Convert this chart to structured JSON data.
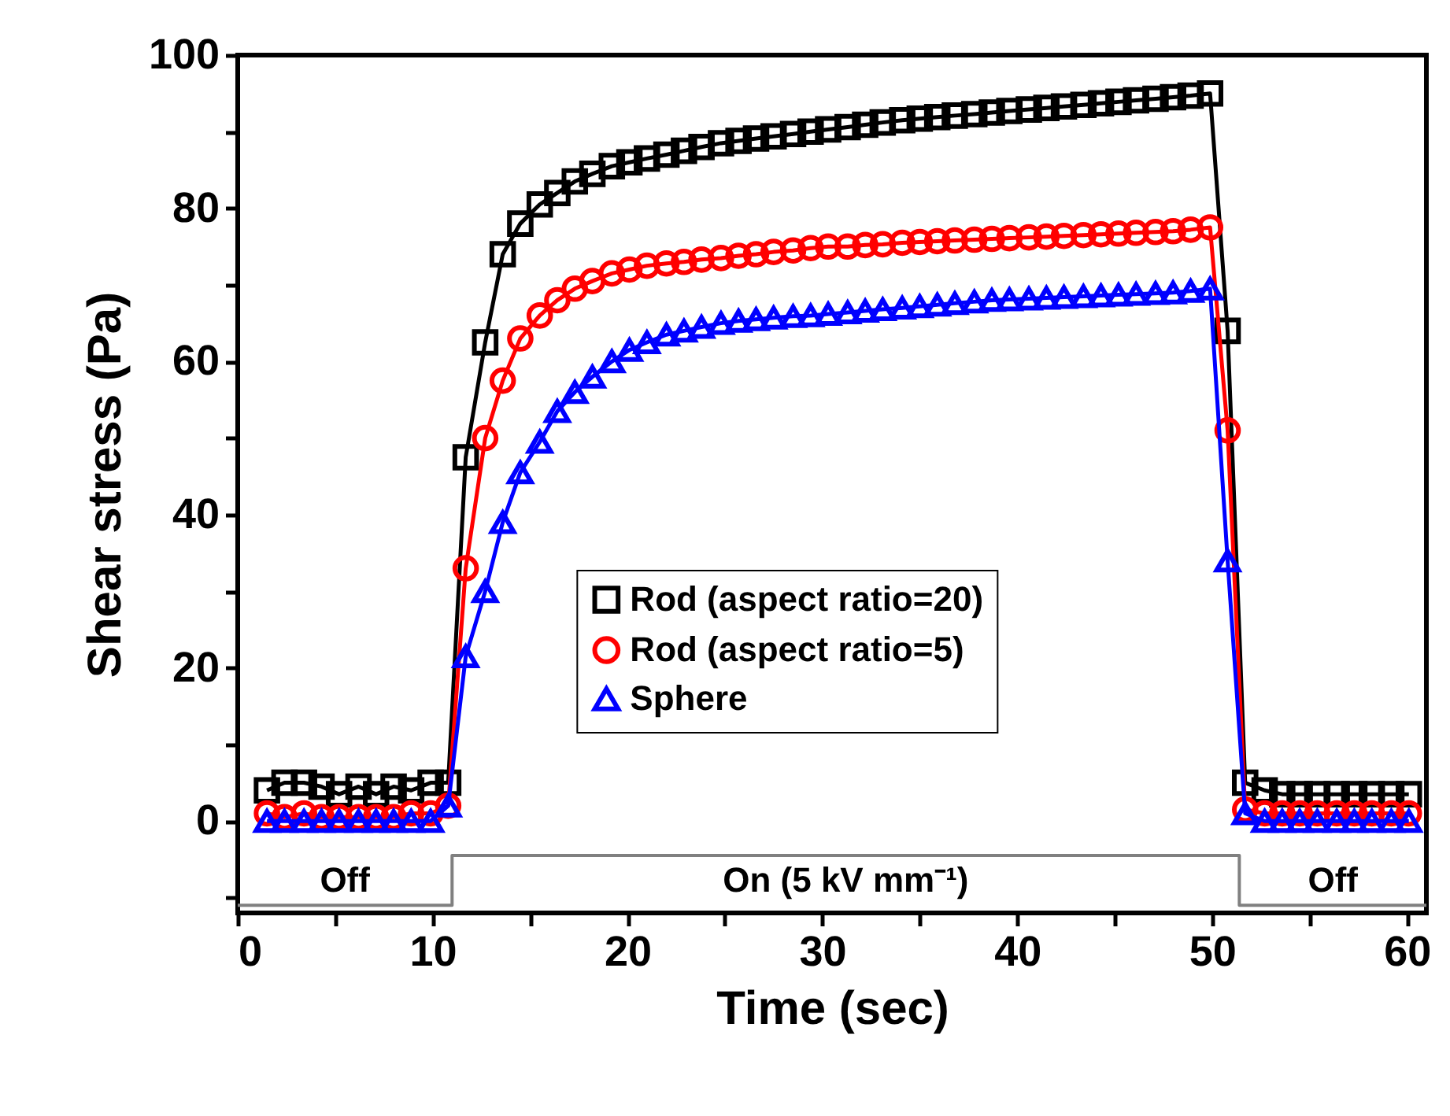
{
  "chart_data": {
    "type": "line",
    "xlabel": "Time (sec)",
    "ylabel": "Shear stress (Pa)",
    "x": [
      1.5,
      2.4,
      3.4,
      4.3,
      5.2,
      6.2,
      7.1,
      8.0,
      8.9,
      9.9,
      10.8,
      11.7,
      12.7,
      13.6,
      14.5,
      15.5,
      16.4,
      17.3,
      18.2,
      19.2,
      20.1,
      21.0,
      22.0,
      22.9,
      23.8,
      24.8,
      25.7,
      26.6,
      27.5,
      28.5,
      29.4,
      30.3,
      31.3,
      32.2,
      33.1,
      34.1,
      35.0,
      35.9,
      36.8,
      37.8,
      38.7,
      39.6,
      40.6,
      41.5,
      42.4,
      43.4,
      44.3,
      45.2,
      46.1,
      47.1,
      48.0,
      48.9,
      49.9,
      50.8,
      51.7,
      52.7,
      53.6,
      54.5,
      55.4,
      56.4,
      57.3,
      58.2,
      59.2,
      60.1
    ],
    "series": [
      {
        "name": "Rod (aspect ratio=20)",
        "color": "#000000",
        "marker": "square",
        "values": [
          4,
          5,
          5,
          4.5,
          3.5,
          4.5,
          3.5,
          4.5,
          4,
          5,
          5,
          47.5,
          62.5,
          74,
          78,
          80.5,
          82,
          83.5,
          84.5,
          85.5,
          86,
          86.5,
          87,
          87.5,
          88,
          88.5,
          88.8,
          89.1,
          89.4,
          89.7,
          90,
          90.3,
          90.6,
          90.9,
          91.2,
          91.5,
          91.7,
          91.9,
          92.1,
          92.3,
          92.5,
          92.7,
          92.9,
          93.1,
          93.3,
          93.5,
          93.7,
          93.9,
          94.1,
          94.3,
          94.5,
          94.7,
          95,
          64,
          5,
          4,
          3.5,
          3.5,
          3.5,
          3.5,
          3.5,
          3.5,
          3.5,
          3.5
        ]
      },
      {
        "name": "Rod (aspect ratio=5)",
        "color": "#ff0000",
        "marker": "circle",
        "values": [
          1,
          0.5,
          1,
          0.5,
          0.5,
          0.5,
          0.5,
          0.5,
          1,
          1,
          2,
          33,
          50,
          57.5,
          63,
          66,
          68,
          69.5,
          70.5,
          71.5,
          72,
          72.5,
          72.8,
          73,
          73.3,
          73.5,
          73.8,
          74,
          74.3,
          74.5,
          74.8,
          75,
          75,
          75.2,
          75.3,
          75.5,
          75.6,
          75.7,
          75.8,
          75.9,
          76,
          76.1,
          76.2,
          76.3,
          76.4,
          76.5,
          76.6,
          76.7,
          76.8,
          76.9,
          77,
          77.2,
          77.5,
          51,
          1.5,
          1,
          1,
          1,
          1,
          1,
          1,
          1,
          1,
          1
        ]
      },
      {
        "name": "Sphere",
        "color": "#0000ff",
        "marker": "triangle",
        "values": [
          0,
          0,
          0,
          0,
          0,
          0,
          0,
          0,
          0,
          0,
          2,
          21.5,
          30,
          39,
          45.5,
          49.5,
          53.5,
          56,
          58,
          60,
          61.5,
          62.5,
          63.5,
          64,
          64.5,
          65,
          65.3,
          65.5,
          65.7,
          65.9,
          66,
          66.2,
          66.4,
          66.6,
          66.8,
          67,
          67.2,
          67.4,
          67.6,
          67.8,
          68,
          68.1,
          68.2,
          68.3,
          68.4,
          68.5,
          68.6,
          68.7,
          68.8,
          68.9,
          69,
          69.2,
          69.5,
          34,
          1,
          0,
          0,
          0,
          0,
          0,
          0,
          0,
          0,
          0
        ]
      },
      {
        "type": "step",
        "color": "#808080",
        "marker": "none",
        "x": [
          0,
          11,
          51.4,
          61
        ],
        "values": [
          -11,
          -4.5,
          -11,
          -11
        ]
      }
    ],
    "annotations": [
      "Off",
      "On (5 kV mm⁻¹)",
      "Off"
    ],
    "xlim": [
      0,
      61
    ],
    "ylim": [
      -12,
      100
    ],
    "xticks": [
      0,
      {
        "value": 5,
        "label": null
      },
      10,
      {
        "value": 15,
        "label": null
      },
      20,
      {
        "value": 25,
        "label": null
      },
      30,
      {
        "value": 35,
        "label": null
      },
      40,
      {
        "value": 45,
        "label": null
      },
      50,
      {
        "value": 55,
        "label": null
      },
      60
    ],
    "yticks": [
      {
        "value": -10,
        "label": null
      },
      0,
      {
        "value": 10,
        "label": null
      },
      20,
      {
        "value": 30,
        "label": null
      },
      40,
      {
        "value": 50,
        "label": null
      },
      60,
      {
        "value": 70,
        "label": null
      },
      80,
      {
        "value": 90,
        "label": null
      },
      100
    ],
    "grid": false,
    "legend": "center",
    "line_style": "solid"
  }
}
